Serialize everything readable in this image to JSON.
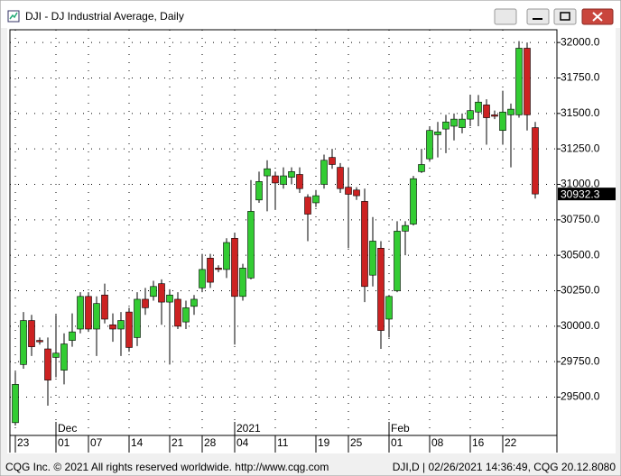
{
  "chart_data": {
    "type": "candlestick",
    "title": "DJI - DJ Industrial Average, Daily",
    "categories": [
      "23",
      null,
      null,
      null,
      null,
      "01",
      null,
      null,
      null,
      "07",
      null,
      null,
      null,
      null,
      "14",
      null,
      null,
      null,
      null,
      "21",
      null,
      null,
      null,
      "28",
      null,
      null,
      null,
      "04",
      null,
      null,
      null,
      null,
      "11",
      null,
      null,
      null,
      null,
      "19",
      null,
      null,
      null,
      "25",
      null,
      null,
      null,
      null,
      "01",
      null,
      null,
      null,
      null,
      "08",
      null,
      null,
      null,
      null,
      "16",
      null,
      null,
      null,
      "22",
      null,
      null,
      null,
      null
    ],
    "periods": [
      null,
      null,
      null,
      null,
      null,
      "Dec",
      null,
      null,
      null,
      null,
      null,
      null,
      null,
      null,
      null,
      null,
      null,
      null,
      null,
      null,
      null,
      null,
      null,
      null,
      null,
      null,
      null,
      "2021",
      null,
      null,
      null,
      null,
      null,
      null,
      null,
      null,
      null,
      null,
      null,
      null,
      null,
      null,
      null,
      null,
      null,
      null,
      "Feb",
      null,
      null,
      null,
      null,
      null,
      null,
      null,
      null,
      null,
      null,
      null,
      null,
      null,
      null,
      null,
      null,
      null,
      null
    ],
    "open": [
      29320,
      29730,
      30040,
      29900,
      29840,
      29780,
      29690,
      29900,
      29980,
      30210,
      29980,
      30220,
      30010,
      29980,
      30100,
      29920,
      30190,
      30210,
      30300,
      30170,
      30190,
      30030,
      30140,
      30270,
      30480,
      30410,
      30400,
      30620,
      30210,
      30340,
      30890,
      31060,
      31060,
      31000,
      31050,
      31070,
      30910,
      30870,
      31000,
      31190,
      31120,
      30980,
      30960,
      30880,
      30360,
      30550,
      30050,
      30250,
      30670,
      30720,
      31090,
      31180,
      31350,
      31390,
      31410,
      31400,
      31460,
      31510,
      31560,
      31490,
      31380,
      31490,
      31490,
      31960,
      31400
    ],
    "high": [
      29680,
      30100,
      30080,
      29920,
      29920,
      30080,
      29950,
      30090,
      30240,
      30240,
      30210,
      30300,
      30090,
      30100,
      30130,
      30240,
      30270,
      30320,
      30330,
      30260,
      30240,
      30180,
      30220,
      30510,
      30510,
      30430,
      30620,
      30660,
      30440,
      31030,
      31090,
      31170,
      31090,
      31120,
      31120,
      31120,
      30930,
      30960,
      31210,
      31250,
      31150,
      31120,
      30980,
      30970,
      30770,
      30600,
      30220,
      30740,
      30740,
      31060,
      31250,
      31410,
      31440,
      31490,
      31500,
      31500,
      31630,
      31630,
      31600,
      31520,
      31660,
      31570,
      32010,
      32000,
      31440
    ],
    "low": [
      29300,
      29700,
      29790,
      29870,
      29440,
      29640,
      29590,
      29855,
      29950,
      29960,
      29790,
      30020,
      29890,
      29790,
      29820,
      29860,
      30080,
      30180,
      30010,
      29730,
      29980,
      29980,
      30080,
      30240,
      30270,
      30380,
      30340,
      29870,
      30180,
      30330,
      30870,
      30810,
      30820,
      30970,
      31000,
      30940,
      30600,
      30840,
      30970,
      31110,
      30940,
      30550,
      30890,
      30170,
      30280,
      29840,
      29920,
      30240,
      30500,
      30710,
      31080,
      31160,
      31190,
      31220,
      31310,
      31360,
      31410,
      31410,
      31280,
      31460,
      31280,
      31120,
      31470,
      31380,
      30900
    ],
    "close": [
      29590,
      30040,
      29855,
      29890,
      29620,
      29810,
      29875,
      29960,
      30210,
      29980,
      30160,
      30050,
      29980,
      30040,
      29850,
      30190,
      30130,
      30280,
      30170,
      30220,
      30000,
      30130,
      30190,
      30400,
      30310,
      30400,
      30590,
      30210,
      30410,
      30810,
      31020,
      31110,
      31010,
      31060,
      31090,
      30970,
      30790,
      30920,
      31170,
      31140,
      30970,
      30930,
      30920,
      30280,
      30600,
      29970,
      30210,
      30670,
      30710,
      31040,
      31140,
      31380,
      31370,
      31440,
      31460,
      31460,
      31520,
      31580,
      31470,
      31480,
      31510,
      31530,
      31960,
      31490,
      30932.3
    ],
    "up_color": "#33cc33",
    "down_color": "#cc2222",
    "ylim": [
      29230,
      32090
    ],
    "yticks": [
      {
        "value": 29500,
        "label": "29500.0"
      },
      {
        "value": 29750,
        "label": "29750.0"
      },
      {
        "value": 30000,
        "label": "30000.0"
      },
      {
        "value": 30250,
        "label": "30250.0"
      },
      {
        "value": 30500,
        "label": "30500.0"
      },
      {
        "value": 30750,
        "label": "30750.0"
      },
      {
        "value": 31000,
        "label": "31000.0"
      },
      {
        "value": 31250,
        "label": "31250.0"
      },
      {
        "value": 31500,
        "label": "31500.0"
      },
      {
        "value": 31750,
        "label": "31750.0"
      },
      {
        "value": 32000,
        "label": "32000.0"
      }
    ],
    "grid": true,
    "copyright": "CQG Inc. © 2021 All rights reserved worldwide. http://www.cqg.com",
    "status": "DJI,D | 02/26/2021 14:36:49, CQG 20.12.8080"
  }
}
